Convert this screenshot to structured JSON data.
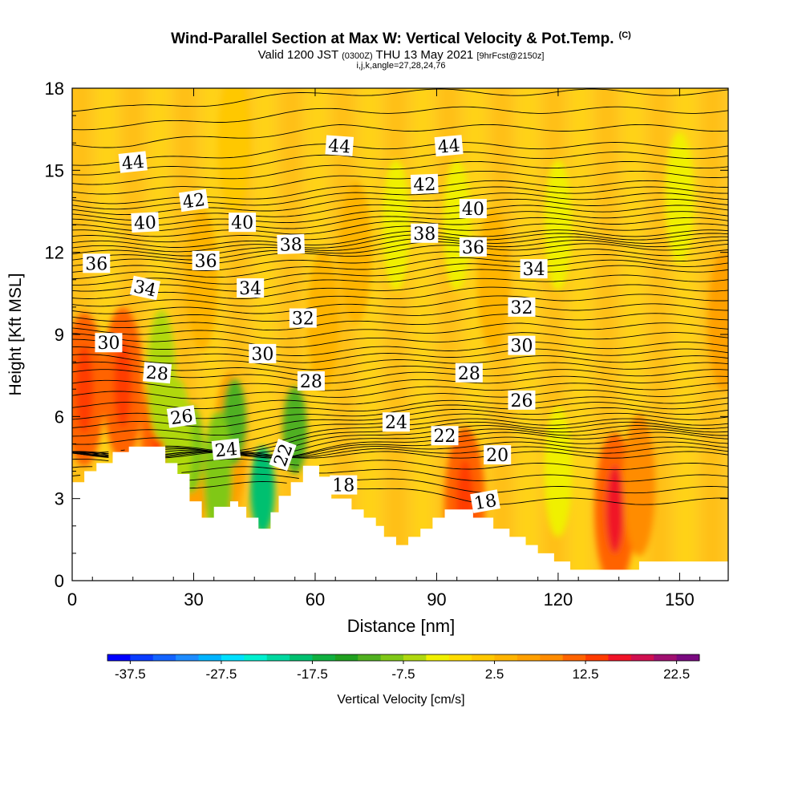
{
  "title": {
    "main": "Wind-Parallel Section at Max W: Vertical Velocity & Pot.Temp.",
    "copyright": "(C)",
    "valid_pre": "Valid 1200 JST",
    "valid_utc": "(0300Z)",
    "valid_post": "THU 13 May 2021",
    "forecast": "[9hrFcst@2150z]",
    "indices": "i,j,k,angle=27,28,24,76"
  },
  "colors": {
    "background": "#ffffff",
    "terrain": "#ffffff",
    "contour": "#000000",
    "field_base": "#ffc92a"
  },
  "chart_data": {
    "type": "heatmap",
    "xlabel": "Distance [nm]",
    "ylabel": "Height [Kft MSL]",
    "xlim": [
      0,
      162
    ],
    "ylim": [
      0,
      18
    ],
    "xticks": [
      0,
      30,
      60,
      90,
      120,
      150
    ],
    "yticks": [
      0,
      3,
      6,
      9,
      12,
      15,
      18
    ],
    "colorbar": {
      "label": "Vertical Velocity [cm/s]",
      "ticks": [
        "-37.5",
        "-27.5",
        "-17.5",
        "-7.5",
        "2.5",
        "12.5",
        "22.5"
      ],
      "min": -40,
      "max": 25,
      "step": 2.5,
      "colors": [
        "#0000ff",
        "#0a3cff",
        "#1464ff",
        "#1e8cff",
        "#00b4ff",
        "#00e0ff",
        "#00f0d0",
        "#00d8a0",
        "#00c070",
        "#10b040",
        "#20a020",
        "#50b020",
        "#80c818",
        "#b0d810",
        "#f0f000",
        "#ffdc00",
        "#ffc800",
        "#ffb400",
        "#ffa000",
        "#ff8c00",
        "#ff6400",
        "#ff3c00",
        "#f01428",
        "#d01050",
        "#a01070",
        "#7a0a80"
      ]
    },
    "terrain_profile": {
      "x": [
        0,
        3,
        3,
        6,
        6,
        10,
        10,
        14,
        14,
        17,
        17,
        23,
        23,
        26,
        26,
        29,
        29,
        32,
        32,
        35,
        35,
        39,
        39,
        41,
        41,
        43,
        43,
        46,
        46,
        49,
        49,
        51,
        51,
        54,
        54,
        57,
        57,
        61,
        61,
        64,
        64,
        69,
        69,
        72,
        72,
        75,
        75,
        77,
        77,
        80,
        80,
        83,
        83,
        86,
        86,
        89,
        89,
        92,
        92,
        95,
        95,
        99,
        99,
        104,
        104,
        108,
        108,
        112,
        112,
        115,
        115,
        119,
        119,
        123,
        123,
        129,
        129,
        135,
        135,
        140,
        140,
        144,
        144,
        162
      ],
      "y": [
        3.6,
        3.6,
        4.0,
        4.0,
        4.3,
        4.3,
        4.7,
        4.7,
        4.9,
        4.9,
        4.9,
        4.9,
        4.3,
        4.3,
        3.9,
        3.9,
        2.9,
        2.9,
        2.3,
        2.3,
        2.7,
        2.7,
        2.9,
        2.9,
        2.7,
        2.7,
        2.3,
        2.3,
        1.9,
        1.9,
        2.5,
        2.5,
        3.1,
        3.1,
        3.6,
        3.6,
        4.2,
        4.2,
        3.8,
        3.8,
        3.0,
        3.0,
        2.6,
        2.6,
        2.3,
        2.3,
        2.0,
        2.0,
        1.6,
        1.6,
        1.3,
        1.3,
        1.6,
        1.6,
        1.9,
        1.9,
        2.3,
        2.3,
        2.6,
        2.6,
        2.6,
        2.6,
        2.3,
        2.3,
        1.9,
        1.9,
        1.6,
        1.6,
        1.3,
        1.3,
        1.0,
        1.0,
        0.7,
        0.7,
        0.4,
        0.4,
        0.4,
        0.4,
        0.4,
        0.4,
        0.7,
        0.7,
        0.7,
        0.7
      ]
    },
    "updrafts": [
      {
        "x": 3,
        "y": 7.0,
        "value": 14
      },
      {
        "x": 12.5,
        "y": 7.2,
        "value": 14
      },
      {
        "x": 22,
        "y": 5.2,
        "value": 14
      },
      {
        "x": 97,
        "y": 2.8,
        "value": 14
      },
      {
        "x": 134,
        "y": 2.6,
        "value": 15
      },
      {
        "x": 140,
        "y": 3.5,
        "value": 8
      },
      {
        "x": 39,
        "y": 5.0,
        "value": 6
      },
      {
        "x": 29,
        "y": 3.5,
        "value": 6
      },
      {
        "x": 161,
        "y": 9.5,
        "value": 6
      },
      {
        "x": 62,
        "y": 9.5,
        "value": 4
      },
      {
        "x": 32,
        "y": 11,
        "value": 3
      },
      {
        "x": 40,
        "y": 16,
        "value": 2
      },
      {
        "x": 70,
        "y": 12,
        "value": 3
      },
      {
        "x": 104,
        "y": 11,
        "value": 3
      }
    ],
    "downdrafts": [
      {
        "x": 47,
        "y": 3.3,
        "value": -18
      },
      {
        "x": 40,
        "y": 5.8,
        "value": -11
      },
      {
        "x": 55,
        "y": 5.5,
        "value": -11
      },
      {
        "x": 29.5,
        "y": 4.8,
        "value": -10
      },
      {
        "x": 26,
        "y": 5.0,
        "value": -7
      },
      {
        "x": 36,
        "y": 3.8,
        "value": -9
      },
      {
        "x": 22,
        "y": 7.5,
        "value": -6
      },
      {
        "x": 80,
        "y": 13,
        "value": -4
      },
      {
        "x": 95,
        "y": 13,
        "value": -4
      },
      {
        "x": 120,
        "y": 13,
        "value": -4
      },
      {
        "x": 120,
        "y": 4.0,
        "value": -5
      },
      {
        "x": 150,
        "y": 14,
        "value": -3
      }
    ],
    "isentrope_labels": [
      {
        "text": "44",
        "x": 15,
        "y": 15.3,
        "angle": -6
      },
      {
        "text": "44",
        "x": 66,
        "y": 15.9,
        "angle": 4
      },
      {
        "text": "44",
        "x": 93,
        "y": 15.9,
        "angle": -5
      },
      {
        "text": "42",
        "x": 30,
        "y": 13.9,
        "angle": -8
      },
      {
        "text": "42",
        "x": 87,
        "y": 14.5,
        "angle": -2
      },
      {
        "text": "40",
        "x": 18,
        "y": 13.1,
        "angle": -3
      },
      {
        "text": "40",
        "x": 42,
        "y": 13.1,
        "angle": 0
      },
      {
        "text": "40",
        "x": 99,
        "y": 13.6,
        "angle": 0
      },
      {
        "text": "38",
        "x": 54,
        "y": 12.3,
        "angle": -2
      },
      {
        "text": "38",
        "x": 87,
        "y": 12.7,
        "angle": 0
      },
      {
        "text": "36",
        "x": 6,
        "y": 11.6,
        "angle": 0
      },
      {
        "text": "36",
        "x": 33,
        "y": 11.7,
        "angle": 0
      },
      {
        "text": "36",
        "x": 99,
        "y": 12.2,
        "angle": 0
      },
      {
        "text": "34",
        "x": 18,
        "y": 10.7,
        "angle": 12
      },
      {
        "text": "34",
        "x": 44,
        "y": 10.7,
        "angle": 0
      },
      {
        "text": "34",
        "x": 114,
        "y": 11.4,
        "angle": 0
      },
      {
        "text": "32",
        "x": 57,
        "y": 9.6,
        "angle": 0
      },
      {
        "text": "32",
        "x": 111,
        "y": 10.0,
        "angle": 0
      },
      {
        "text": "30",
        "x": 9,
        "y": 8.7,
        "angle": 0
      },
      {
        "text": "30",
        "x": 47,
        "y": 8.3,
        "angle": 0
      },
      {
        "text": "30",
        "x": 111,
        "y": 8.6,
        "angle": 0
      },
      {
        "text": "28",
        "x": 21,
        "y": 7.6,
        "angle": 5
      },
      {
        "text": "28",
        "x": 59,
        "y": 7.3,
        "angle": 0
      },
      {
        "text": "28",
        "x": 98,
        "y": 7.6,
        "angle": 0
      },
      {
        "text": "26",
        "x": 27,
        "y": 6.0,
        "angle": -8
      },
      {
        "text": "26",
        "x": 111,
        "y": 6.6,
        "angle": 0
      },
      {
        "text": "24",
        "x": 38,
        "y": 4.8,
        "angle": -6
      },
      {
        "text": "24",
        "x": 80,
        "y": 5.8,
        "angle": 0
      },
      {
        "text": "22",
        "x": 52,
        "y": 4.6,
        "angle": -70
      },
      {
        "text": "22",
        "x": 92,
        "y": 5.3,
        "angle": 0
      },
      {
        "text": "20",
        "x": 105,
        "y": 4.6,
        "angle": 0
      },
      {
        "text": "18",
        "x": 67,
        "y": 3.5,
        "angle": 0
      },
      {
        "text": "18",
        "x": 102,
        "y": 2.9,
        "angle": -10
      }
    ]
  }
}
